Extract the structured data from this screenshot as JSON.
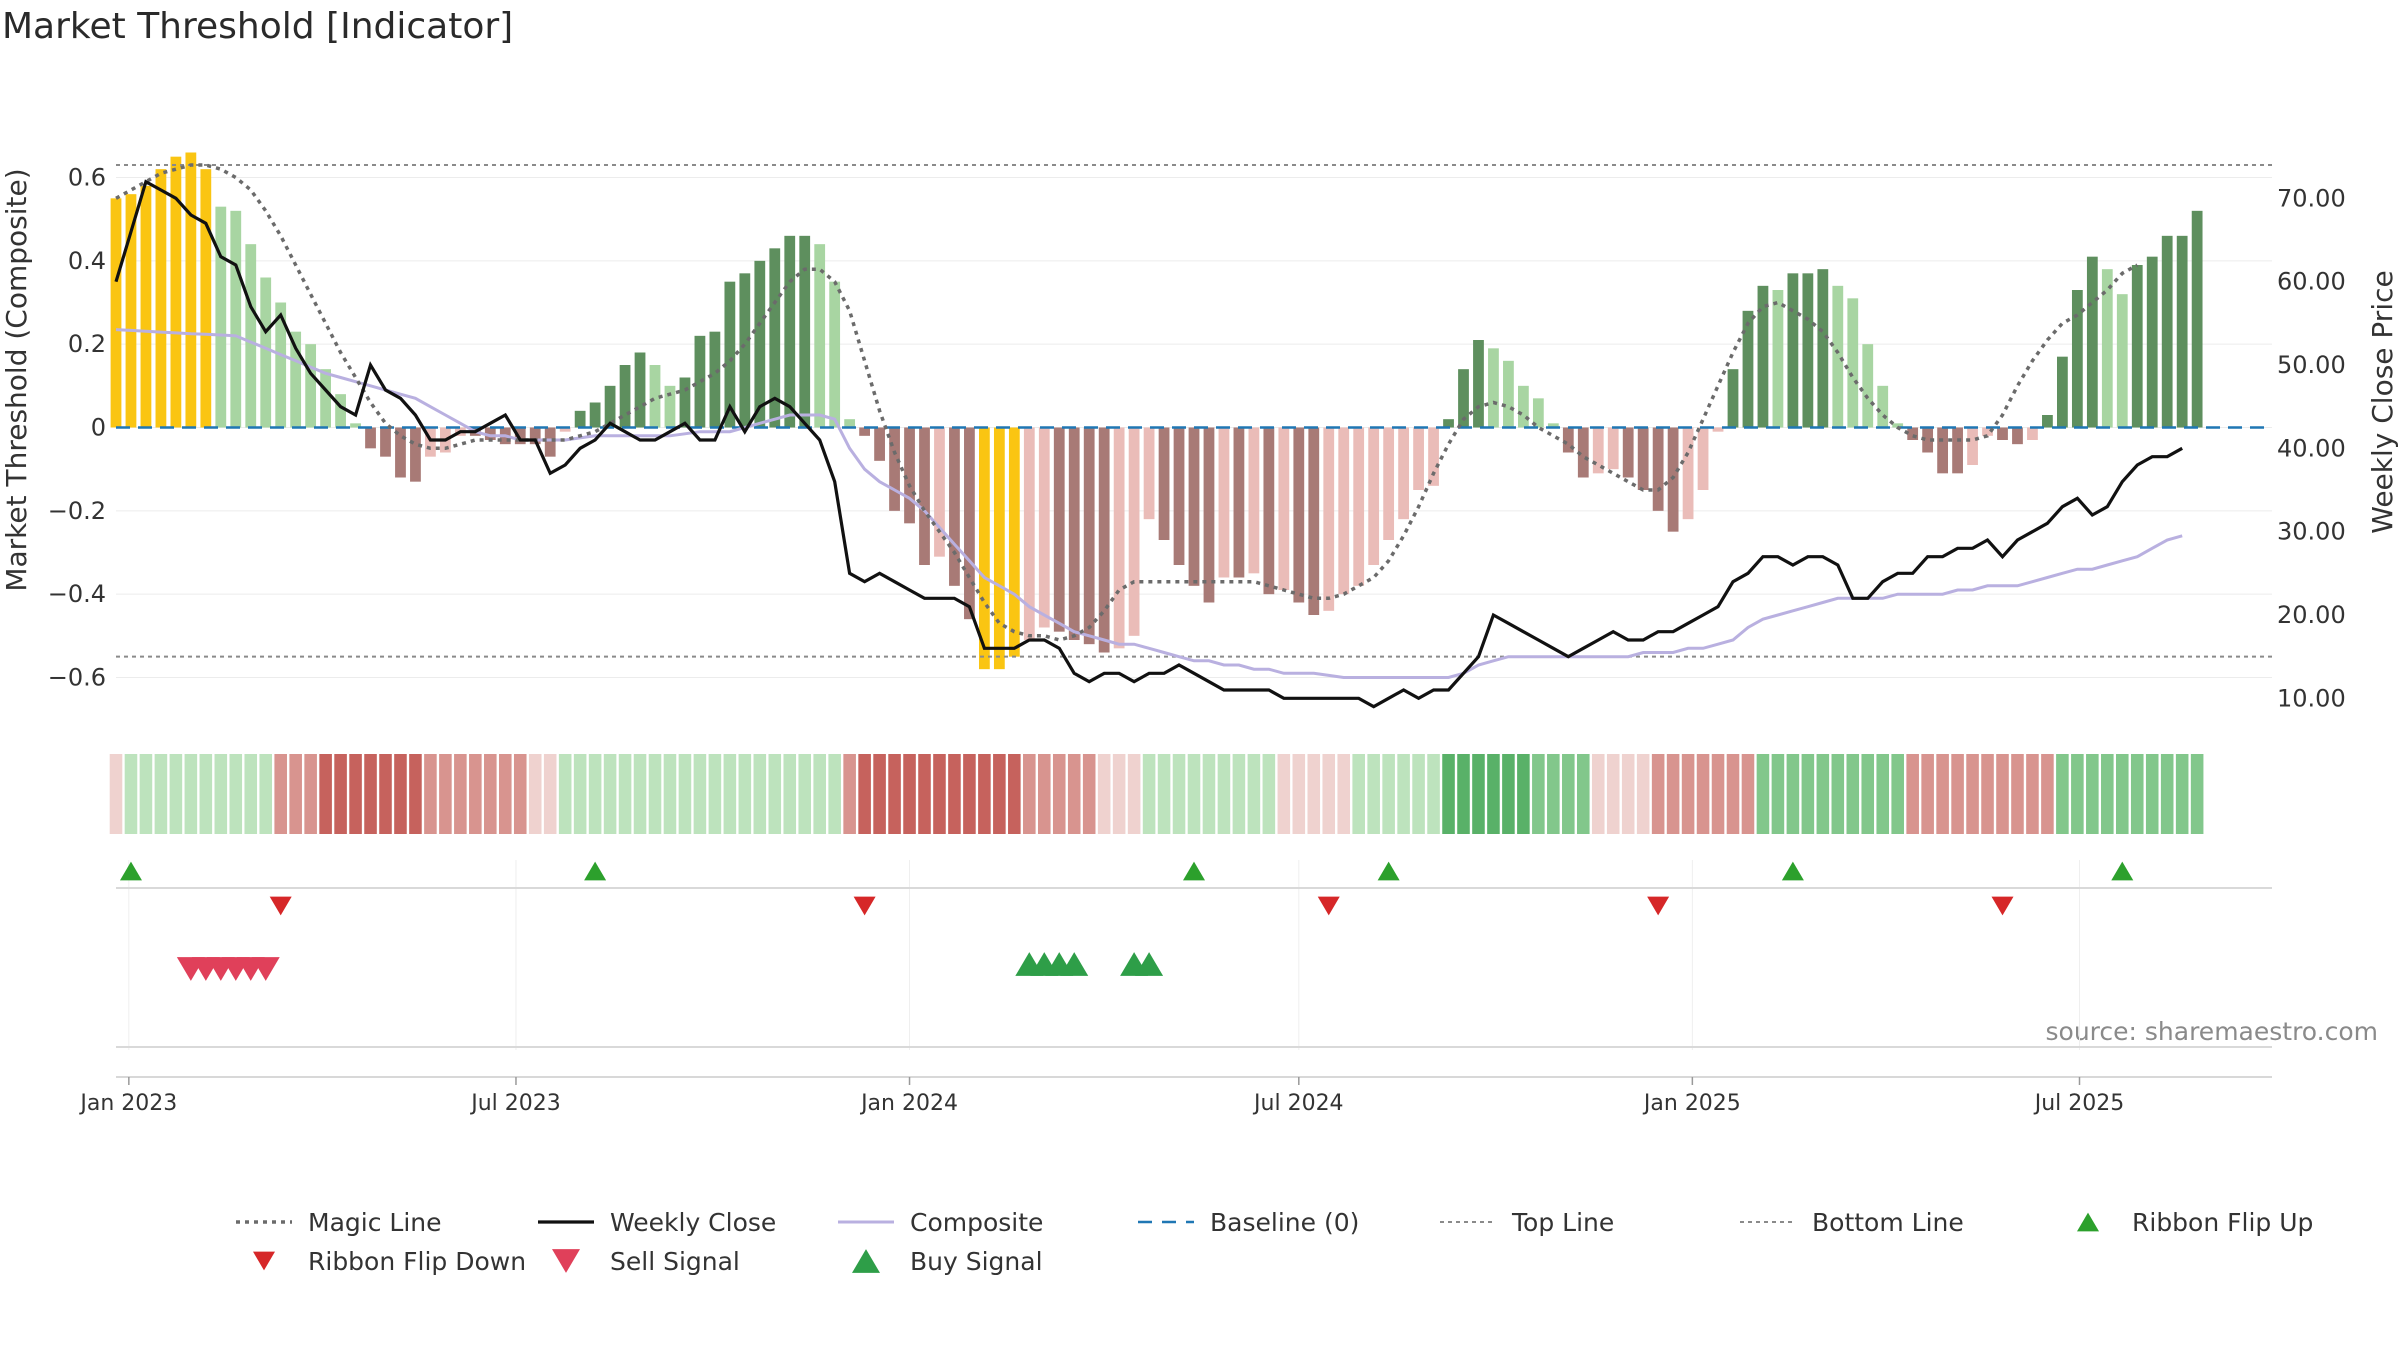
{
  "chart_data": {
    "type": "bar",
    "title": "Market Threshold [Indicator]",
    "ylabel_left": "Market Threshold (Composite)",
    "ylabel_right": "Weekly Close Price",
    "source": "source: sharemaestro.com",
    "left_axis": {
      "ylim": [
        -0.75,
        0.75
      ],
      "ticks": [
        0.6,
        0.4,
        0.2,
        0,
        -0.2,
        -0.4,
        -0.6
      ],
      "tick_labels": [
        "0.6",
        "0.4",
        "0.2",
        "0",
        "−0.2",
        "−0.4",
        "−0.6"
      ]
    },
    "right_axis": {
      "ylim": [
        5,
        80
      ],
      "ticks": [
        70,
        60,
        50,
        40,
        30,
        20,
        10
      ],
      "tick_labels": [
        "70.00",
        "60.00",
        "50.00",
        "40.00",
        "30.00",
        "20.00",
        "10.00"
      ]
    },
    "x_axis": {
      "start": "2022-12-26",
      "end": "2025-09-29",
      "ticks": [
        "2023-01-01",
        "2023-07-01",
        "2024-01-01",
        "2024-07-01",
        "2025-01-01",
        "2025-07-01"
      ],
      "tick_labels": [
        "Jan 2023",
        "Jul 2023",
        "Jan 2024",
        "Jul 2024",
        "Jan 2025",
        "Jul 2025"
      ]
    },
    "top_line": 0.63,
    "bottom_line": -0.55,
    "baseline": 0,
    "colors": {
      "pos_strong": "#5e8f5e",
      "pos_light": "#a8d5a2",
      "neg_strong": "#a87a76",
      "neg_light": "#eabcb8",
      "extreme": "#fac512",
      "weekly_close": "#111111",
      "composite": "#b9b0e0",
      "magic": "#6b6b6b",
      "baseline": "#1f77b4",
      "ref_lines": "#8a8a8a",
      "up_marker": "#2ca02c",
      "down_marker": "#d62728",
      "sell": "#e0405a",
      "buy": "#2e9e48"
    },
    "composite_bars": [
      0.55,
      0.56,
      0.58,
      0.62,
      0.65,
      0.66,
      0.62,
      0.53,
      0.52,
      0.44,
      0.36,
      0.3,
      0.23,
      0.2,
      0.14,
      0.08,
      0.01,
      -0.05,
      -0.07,
      -0.12,
      -0.13,
      -0.07,
      -0.06,
      -0.02,
      -0.02,
      -0.03,
      -0.04,
      -0.04,
      -0.04,
      -0.07,
      -0.01,
      0.04,
      0.06,
      0.1,
      0.15,
      0.18,
      0.15,
      0.1,
      0.12,
      0.22,
      0.23,
      0.35,
      0.37,
      0.4,
      0.43,
      0.46,
      0.46,
      0.44,
      0.35,
      0.02,
      -0.02,
      -0.08,
      -0.2,
      -0.23,
      -0.33,
      -0.31,
      -0.38,
      -0.46,
      -0.58,
      -0.58,
      -0.55,
      -0.51,
      -0.48,
      -0.49,
      -0.51,
      -0.52,
      -0.54,
      -0.53,
      -0.5,
      -0.22,
      -0.27,
      -0.33,
      -0.38,
      -0.42,
      -0.36,
      -0.36,
      -0.35,
      -0.4,
      -0.39,
      -0.42,
      -0.45,
      -0.44,
      -0.4,
      -0.38,
      -0.33,
      -0.27,
      -0.22,
      -0.15,
      -0.14,
      0.02,
      0.14,
      0.21,
      0.19,
      0.16,
      0.1,
      0.07,
      0.01,
      -0.06,
      -0.12,
      -0.11,
      -0.1,
      -0.12,
      -0.15,
      -0.2,
      -0.25,
      -0.22,
      -0.15,
      -0.01,
      0.14,
      0.28,
      0.34,
      0.33,
      0.37,
      0.37,
      0.38,
      0.34,
      0.31,
      0.2,
      0.1,
      0.01,
      -0.03,
      -0.06,
      -0.11,
      -0.11,
      -0.09,
      -0.02,
      -0.03,
      -0.04,
      -0.03,
      0.03,
      0.17,
      0.33,
      0.41,
      0.38,
      0.32,
      0.39,
      0.41,
      0.46,
      0.46,
      0.52
    ],
    "weekly_close": [
      60,
      66,
      72,
      71,
      70,
      68,
      67,
      63,
      62,
      57,
      54,
      56,
      52,
      49,
      47,
      45,
      44,
      50,
      47,
      46,
      44,
      41,
      41,
      42,
      42,
      43,
      44,
      41,
      41,
      37,
      38,
      40,
      41,
      43,
      42,
      41,
      41,
      42,
      43,
      41,
      41,
      45,
      42,
      45,
      46,
      45,
      43,
      41,
      36,
      25,
      24,
      25,
      24,
      23,
      22,
      22,
      22,
      21,
      16,
      16,
      16,
      17,
      17,
      16,
      13,
      12,
      13,
      13,
      12,
      13,
      13,
      14,
      13,
      12,
      11,
      11,
      11,
      11,
      10,
      10,
      10,
      10,
      10,
      10,
      9,
      10,
      11,
      10,
      11,
      11,
      13,
      15,
      20,
      19,
      18,
      17,
      16,
      15,
      16,
      17,
      18,
      17,
      17,
      18,
      18,
      19,
      20,
      21,
      24,
      25,
      27,
      27,
      26,
      27,
      27,
      26,
      22,
      22,
      24,
      25,
      25,
      27,
      27,
      28,
      28,
      29,
      27,
      29,
      30,
      31,
      33,
      34,
      32,
      33,
      36,
      38,
      39,
      39,
      40
    ],
    "composite_line": [
      0.235,
      0.233,
      0.231,
      0.229,
      0.227,
      0.225,
      0.224,
      0.222,
      0.22,
      0.205,
      0.19,
      0.175,
      0.16,
      0.145,
      0.13,
      0.12,
      0.11,
      0.1,
      0.09,
      0.08,
      0.07,
      0.05,
      0.03,
      0.01,
      -0.01,
      -0.02,
      -0.02,
      -0.03,
      -0.03,
      -0.03,
      -0.03,
      -0.025,
      -0.02,
      -0.02,
      -0.02,
      -0.02,
      -0.02,
      -0.02,
      -0.015,
      -0.01,
      -0.01,
      -0.01,
      0.0,
      0.01,
      0.02,
      0.03,
      0.03,
      0.03,
      0.02,
      -0.05,
      -0.1,
      -0.13,
      -0.15,
      -0.17,
      -0.2,
      -0.24,
      -0.28,
      -0.32,
      -0.36,
      -0.38,
      -0.4,
      -0.43,
      -0.45,
      -0.47,
      -0.49,
      -0.5,
      -0.51,
      -0.52,
      -0.52,
      -0.53,
      -0.54,
      -0.55,
      -0.56,
      -0.56,
      -0.57,
      -0.57,
      -0.58,
      -0.58,
      -0.59,
      -0.59,
      -0.59,
      -0.595,
      -0.6,
      -0.6,
      -0.6,
      -0.6,
      -0.6,
      -0.6,
      -0.6,
      -0.6,
      -0.59,
      -0.57,
      -0.56,
      -0.55,
      -0.55,
      -0.55,
      -0.55,
      -0.55,
      -0.55,
      -0.55,
      -0.55,
      -0.55,
      -0.54,
      -0.54,
      -0.54,
      -0.53,
      -0.53,
      -0.52,
      -0.51,
      -0.48,
      -0.46,
      -0.45,
      -0.44,
      -0.43,
      -0.42,
      -0.41,
      -0.41,
      -0.41,
      -0.41,
      -0.4,
      -0.4,
      -0.4,
      -0.4,
      -0.39,
      -0.39,
      -0.38,
      -0.38,
      -0.38,
      -0.37,
      -0.36,
      -0.35,
      -0.34,
      -0.34,
      -0.33,
      -0.32,
      -0.31,
      -0.29,
      -0.27,
      -0.26
    ],
    "magic_line": [
      0.55,
      0.57,
      0.59,
      0.61,
      0.62,
      0.63,
      0.63,
      0.62,
      0.6,
      0.57,
      0.52,
      0.46,
      0.39,
      0.32,
      0.25,
      0.18,
      0.12,
      0.06,
      0.01,
      -0.02,
      -0.04,
      -0.05,
      -0.05,
      -0.04,
      -0.03,
      -0.03,
      -0.03,
      -0.03,
      -0.03,
      -0.03,
      -0.03,
      -0.02,
      -0.01,
      0.01,
      0.03,
      0.05,
      0.07,
      0.08,
      0.09,
      0.11,
      0.13,
      0.16,
      0.2,
      0.25,
      0.3,
      0.35,
      0.38,
      0.38,
      0.35,
      0.28,
      0.16,
      0.04,
      -0.06,
      -0.14,
      -0.2,
      -0.25,
      -0.3,
      -0.36,
      -0.42,
      -0.47,
      -0.49,
      -0.5,
      -0.5,
      -0.51,
      -0.5,
      -0.48,
      -0.44,
      -0.39,
      -0.37,
      -0.37,
      -0.37,
      -0.37,
      -0.37,
      -0.37,
      -0.37,
      -0.37,
      -0.37,
      -0.38,
      -0.39,
      -0.4,
      -0.41,
      -0.41,
      -0.4,
      -0.38,
      -0.36,
      -0.32,
      -0.26,
      -0.19,
      -0.11,
      -0.04,
      0.02,
      0.05,
      0.06,
      0.05,
      0.03,
      0.0,
      -0.02,
      -0.04,
      -0.07,
      -0.09,
      -0.11,
      -0.13,
      -0.15,
      -0.15,
      -0.12,
      -0.06,
      0.02,
      0.1,
      0.18,
      0.25,
      0.29,
      0.3,
      0.28,
      0.26,
      0.23,
      0.18,
      0.12,
      0.07,
      0.03,
      0.0,
      -0.02,
      -0.03,
      -0.03,
      -0.03,
      -0.03,
      -0.02,
      0.03,
      0.1,
      0.16,
      0.21,
      0.25,
      0.27,
      0.3,
      0.33,
      0.37,
      0.39
    ],
    "ribbon_levels": [
      -1,
      1,
      1,
      1,
      1,
      1,
      1,
      1,
      1,
      1,
      1,
      -2,
      -2,
      -2,
      -3,
      -3,
      -3,
      -3,
      -3,
      -3,
      -3,
      -2,
      -2,
      -2,
      -2,
      -2,
      -2,
      -2,
      -1,
      -1,
      1,
      1,
      1,
      1,
      1,
      1,
      1,
      1,
      1,
      1,
      1,
      1,
      1,
      1,
      1,
      1,
      1,
      1,
      1,
      -2,
      -3,
      -3,
      -3,
      -3,
      -3,
      -3,
      -3,
      -3,
      -3,
      -3,
      -3,
      -2,
      -2,
      -2,
      -2,
      -2,
      -1,
      -1,
      -1,
      1,
      1,
      1,
      1,
      1,
      1,
      1,
      1,
      1,
      -1,
      -1,
      -1,
      -1,
      -1,
      1,
      1,
      1,
      1,
      1,
      1,
      3,
      3,
      3,
      3,
      3,
      3,
      2,
      2,
      2,
      2,
      -1,
      -1,
      -1,
      -1,
      -2,
      -2,
      -2,
      -2,
      -2,
      -2,
      -2,
      2,
      2,
      2,
      2,
      2,
      2,
      2,
      2,
      2,
      2,
      -2,
      -2,
      -2,
      -2,
      -2,
      -2,
      -2,
      -2,
      -2,
      -2,
      2,
      2,
      2,
      2,
      2,
      2,
      2,
      2,
      2,
      2
    ],
    "ribbon_flip_up": [
      "2023-01-02",
      "2023-08-07",
      "2024-05-13",
      "2024-08-12",
      "2025-02-17",
      "2025-07-21"
    ],
    "ribbon_flip_down": [
      "2023-03-13",
      "2023-12-11",
      "2024-07-15",
      "2024-12-16",
      "2025-05-26"
    ],
    "sell_signals": [
      "2023-01-30",
      "2023-02-06",
      "2023-02-13",
      "2023-02-20",
      "2023-02-27",
      "2023-03-06"
    ],
    "buy_signals": [
      "2024-02-26",
      "2024-03-04",
      "2024-03-11",
      "2024-03-18",
      "2024-04-15",
      "2024-04-22"
    ],
    "legend": [
      {
        "label": "Magic Line",
        "kind": "dotted"
      },
      {
        "label": "Weekly Close",
        "kind": "solid"
      },
      {
        "label": "Composite",
        "kind": "lavender"
      },
      {
        "label": "Baseline (0)",
        "kind": "dashed"
      },
      {
        "label": "Top Line",
        "kind": "refline"
      },
      {
        "label": "Bottom Line",
        "kind": "refline"
      },
      {
        "label": "Ribbon Flip Up",
        "kind": "up"
      },
      {
        "label": "Ribbon Flip Down",
        "kind": "down"
      },
      {
        "label": "Sell Signal",
        "kind": "sell"
      },
      {
        "label": "Buy Signal",
        "kind": "buy"
      }
    ]
  }
}
